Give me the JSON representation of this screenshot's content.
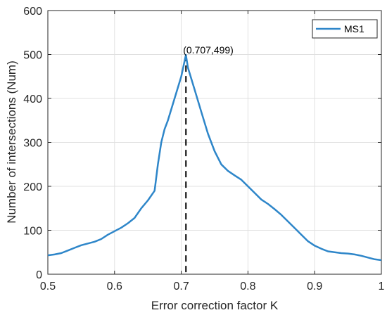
{
  "chart_data": {
    "type": "line",
    "title": "",
    "xlabel": "Error correction factor K",
    "ylabel": "Number of intersections (Num)",
    "xlim": [
      0.5,
      1
    ],
    "ylim": [
      0,
      600
    ],
    "xticks": [
      0.5,
      0.6,
      0.7,
      0.8,
      0.9,
      1
    ],
    "yticks": [
      0,
      100,
      200,
      300,
      400,
      500,
      600
    ],
    "xtick_labels": [
      "0.5",
      "0.6",
      "0.7",
      "0.8",
      "0.9",
      "1"
    ],
    "ytick_labels": [
      "0",
      "100",
      "200",
      "300",
      "400",
      "500",
      "600"
    ],
    "grid": true,
    "legend": {
      "position": "top-right"
    },
    "series": [
      {
        "name": "MS1",
        "color": "#2E86C9",
        "x": [
          0.5,
          0.51,
          0.52,
          0.53,
          0.54,
          0.55,
          0.56,
          0.57,
          0.58,
          0.59,
          0.6,
          0.61,
          0.62,
          0.63,
          0.64,
          0.65,
          0.66,
          0.665,
          0.67,
          0.675,
          0.68,
          0.69,
          0.7,
          0.707,
          0.71,
          0.72,
          0.73,
          0.74,
          0.75,
          0.76,
          0.77,
          0.78,
          0.79,
          0.8,
          0.81,
          0.82,
          0.83,
          0.84,
          0.85,
          0.86,
          0.87,
          0.88,
          0.89,
          0.9,
          0.91,
          0.92,
          0.93,
          0.94,
          0.95,
          0.96,
          0.97,
          0.98,
          0.99,
          1.0
        ],
        "y": [
          43,
          45,
          48,
          54,
          60,
          66,
          70,
          74,
          80,
          90,
          98,
          106,
          116,
          128,
          150,
          168,
          190,
          250,
          300,
          330,
          350,
          400,
          450,
          499,
          470,
          420,
          370,
          320,
          280,
          250,
          235,
          225,
          215,
          200,
          185,
          170,
          160,
          148,
          135,
          120,
          105,
          90,
          75,
          65,
          58,
          52,
          50,
          48,
          47,
          45,
          42,
          38,
          34,
          32
        ]
      }
    ],
    "marker_line": {
      "x": 0.707,
      "y": 499
    },
    "annotation": {
      "label": "(0.707,499)"
    }
  }
}
